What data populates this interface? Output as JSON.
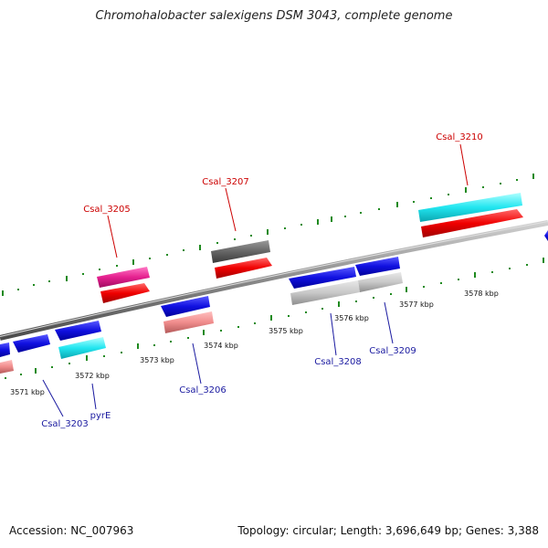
{
  "title": "Chromohalobacter salexigens DSM 3043, complete genome",
  "footer": {
    "accession": "Accession: NC_007963",
    "stats": "Topology: circular; Length: 3,696,649 bp; Genes: 3,388"
  },
  "colors": {
    "backbone": "#8a8a8a",
    "tick_green": "#1f8a1f",
    "forward_label": "#cc0000",
    "reverse_label": "#1a1aa0"
  },
  "tick_labels": [
    "3571 kbp",
    "3572 kbp",
    "3573 kbp",
    "3574 kbp",
    "3575 kbp",
    "3576 kbp",
    "3577 kbp",
    "3578 kbp"
  ],
  "gene_labels": {
    "forward": [
      "Csal_3205",
      "Csal_3207",
      "Csal_3210"
    ],
    "reverse": [
      "Csal_3203",
      "pyrE",
      "Csal_3206",
      "Csal_3208",
      "Csal_3209"
    ]
  }
}
